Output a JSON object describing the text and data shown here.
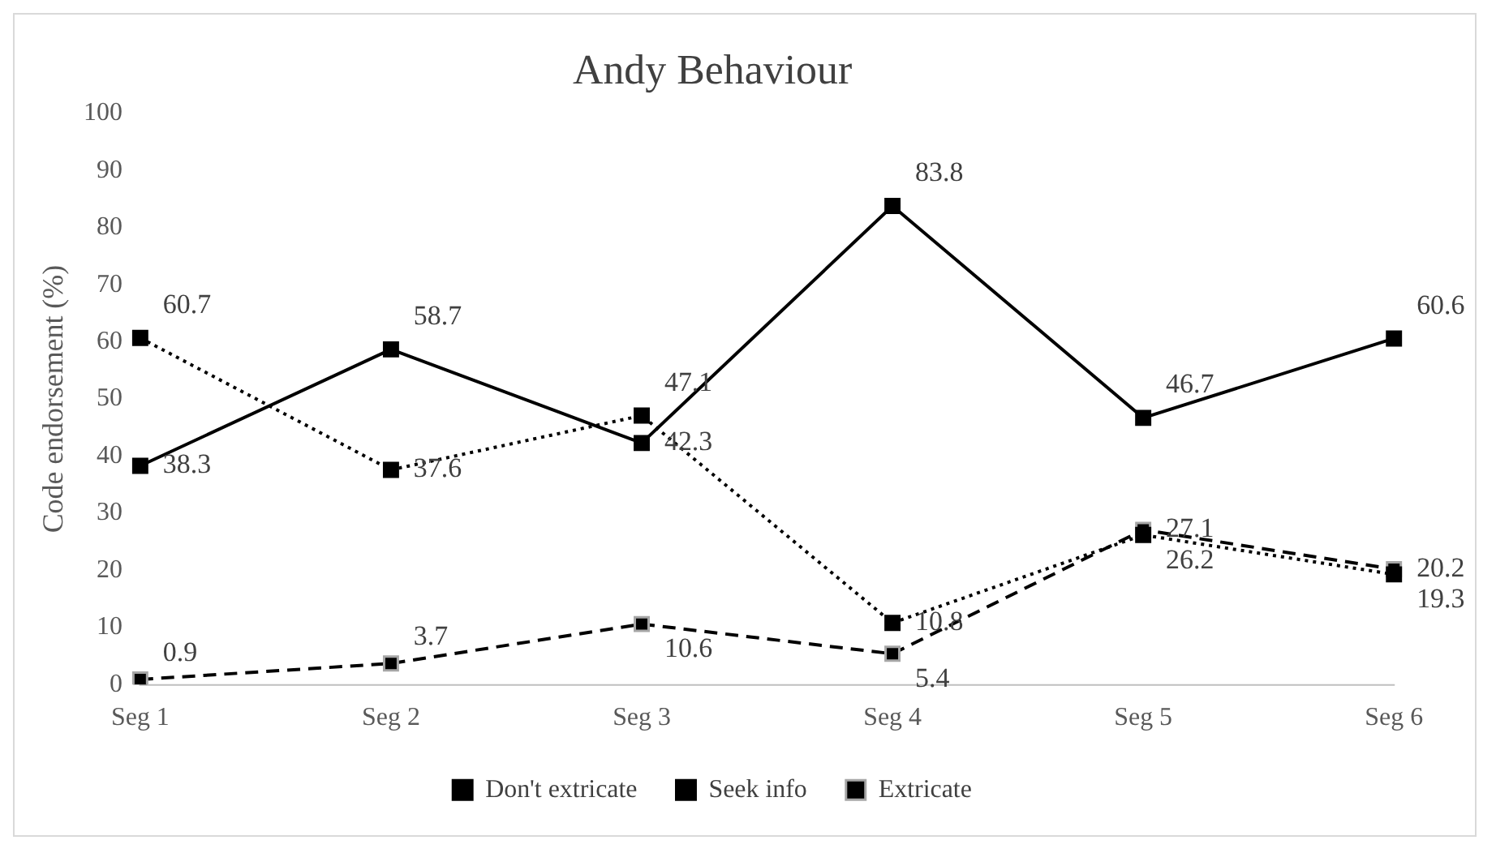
{
  "chart_data": {
    "type": "line",
    "title": "Andy Behaviour",
    "ylabel": "Code endorsement (%)",
    "categories": [
      "Seg 1",
      "Seg 2",
      "Seg 3",
      "Seg 4",
      "Seg 5",
      "Seg 6"
    ],
    "series": [
      {
        "name": "Don't extricate",
        "color": "#000000",
        "line_style": "solid",
        "values": [
          38.3,
          58.7,
          42.3,
          83.8,
          46.7,
          60.6
        ]
      },
      {
        "name": "Seek info",
        "color": "#000000",
        "line_style": "dotted",
        "values": [
          60.7,
          37.6,
          47.1,
          10.8,
          26.2,
          19.3
        ]
      },
      {
        "name": "Extricate",
        "color": "#000000",
        "line_style": "dashed",
        "values": [
          0.9,
          3.7,
          10.6,
          5.4,
          27.1,
          20.2
        ]
      }
    ],
    "ylim": [
      0,
      100
    ],
    "yticks": [
      0,
      10,
      20,
      30,
      40,
      50,
      60,
      70,
      80,
      90,
      100
    ],
    "grid": false,
    "legend": "bottom",
    "marker": "square",
    "data_labels": true
  }
}
